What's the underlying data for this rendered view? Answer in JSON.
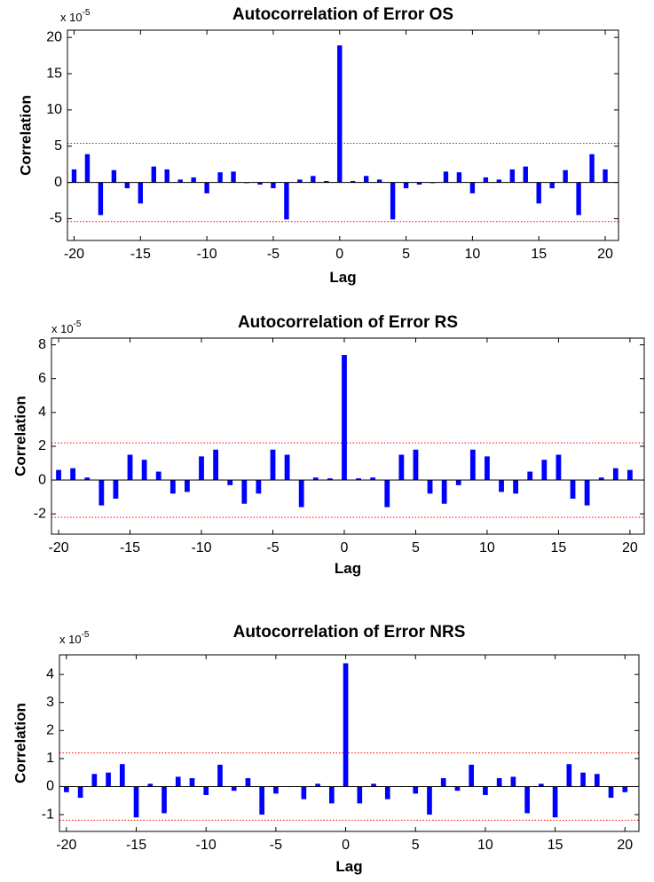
{
  "chart_data": [
    {
      "type": "bar",
      "title": "Autocorrelation of Error OS",
      "xlabel": "Lag",
      "ylabel": "Correlation",
      "scale_label": "x 10",
      "scale_exponent": "-5",
      "xlim": [
        -20.5,
        21
      ],
      "ylim": [
        -8,
        21
      ],
      "xticks": [
        -20,
        -15,
        -10,
        -5,
        0,
        5,
        10,
        15,
        20
      ],
      "yticks": [
        -5,
        0,
        5,
        10,
        15,
        20
      ],
      "confidence_bounds": [
        5.4,
        -5.4
      ],
      "bar_color": "#0000ff",
      "bound_color": "#ff0000",
      "x": [
        -20,
        -19,
        -18,
        -17,
        -16,
        -15,
        -14,
        -13,
        -12,
        -11,
        -10,
        -9,
        -8,
        -7,
        -6,
        -5,
        -4,
        -3,
        -2,
        -1,
        0,
        1,
        2,
        3,
        4,
        5,
        6,
        7,
        8,
        9,
        10,
        11,
        12,
        13,
        14,
        15,
        16,
        17,
        18,
        19,
        20
      ],
      "values": [
        1.8,
        3.9,
        -4.5,
        1.7,
        -0.8,
        -2.9,
        2.2,
        1.8,
        0.4,
        0.7,
        -1.5,
        1.4,
        1.5,
        -0.1,
        -0.3,
        -0.8,
        -5.1,
        0.4,
        0.9,
        0.2,
        18.9,
        0.2,
        0.9,
        0.4,
        -5.1,
        -0.8,
        -0.3,
        -0.1,
        1.5,
        1.4,
        -1.5,
        0.7,
        0.4,
        1.8,
        2.2,
        -2.9,
        -0.8,
        1.7,
        -4.5,
        3.9,
        1.8
      ]
    },
    {
      "type": "bar",
      "title": "Autocorrelation of Error RS",
      "xlabel": "Lag",
      "ylabel": "Correlation",
      "scale_label": "x 10",
      "scale_exponent": "-5",
      "xlim": [
        -20.5,
        21
      ],
      "ylim": [
        -3.2,
        8.4
      ],
      "xticks": [
        -20,
        -15,
        -10,
        -5,
        0,
        5,
        10,
        15,
        20
      ],
      "yticks": [
        -2,
        0,
        2,
        4,
        6,
        8
      ],
      "confidence_bounds": [
        2.2,
        -2.2
      ],
      "bar_color": "#0000ff",
      "bound_color": "#ff0000",
      "x": [
        -20,
        -19,
        -18,
        -17,
        -16,
        -15,
        -14,
        -13,
        -12,
        -11,
        -10,
        -9,
        -8,
        -7,
        -6,
        -5,
        -4,
        -3,
        -2,
        -1,
        0,
        1,
        2,
        3,
        4,
        5,
        6,
        7,
        8,
        9,
        10,
        11,
        12,
        13,
        14,
        15,
        16,
        17,
        18,
        19,
        20
      ],
      "values": [
        0.6,
        0.7,
        0.15,
        -1.5,
        -1.1,
        1.5,
        1.2,
        0.5,
        -0.8,
        -0.7,
        1.4,
        1.8,
        -0.3,
        -1.4,
        -0.8,
        1.8,
        1.5,
        -1.6,
        0.15,
        0.1,
        7.4,
        0.1,
        0.15,
        -1.6,
        1.5,
        1.8,
        -0.8,
        -1.4,
        -0.3,
        1.8,
        1.4,
        -0.7,
        -0.8,
        0.5,
        1.2,
        1.5,
        -1.1,
        -1.5,
        0.15,
        0.7,
        0.6
      ]
    },
    {
      "type": "bar",
      "title": "Autocorrelation of Error NRS",
      "xlabel": "Lag",
      "ylabel": "Correlation",
      "scale_label": "x 10",
      "scale_exponent": "-5",
      "xlim": [
        -20.5,
        21
      ],
      "ylim": [
        -1.6,
        4.7
      ],
      "xticks": [
        -20,
        -15,
        -10,
        -5,
        0,
        5,
        10,
        15,
        20
      ],
      "yticks": [
        -1,
        0,
        1,
        2,
        3,
        4
      ],
      "confidence_bounds": [
        1.2,
        -1.2
      ],
      "bar_color": "#0000ff",
      "bound_color": "#ff0000",
      "x": [
        -20,
        -19,
        -18,
        -17,
        -16,
        -15,
        -14,
        -13,
        -12,
        -11,
        -10,
        -9,
        -8,
        -7,
        -6,
        -5,
        -4,
        -3,
        -2,
        -1,
        0,
        1,
        2,
        3,
        4,
        5,
        6,
        7,
        8,
        9,
        10,
        11,
        12,
        13,
        14,
        15,
        16,
        17,
        18,
        19,
        20
      ],
      "values": [
        -0.2,
        -0.4,
        0.45,
        0.5,
        0.8,
        -1.1,
        0.1,
        -0.95,
        0.35,
        0.3,
        -0.3,
        0.78,
        -0.15,
        0.3,
        -1.0,
        -0.25,
        0,
        -0.45,
        0.1,
        -0.6,
        4.4,
        -0.6,
        0.1,
        -0.45,
        0,
        -0.25,
        -1.0,
        0.3,
        -0.15,
        0.78,
        -0.3,
        0.3,
        0.35,
        -0.95,
        0.1,
        -1.1,
        0.8,
        0.5,
        0.45,
        -0.4,
        -0.2
      ]
    }
  ]
}
